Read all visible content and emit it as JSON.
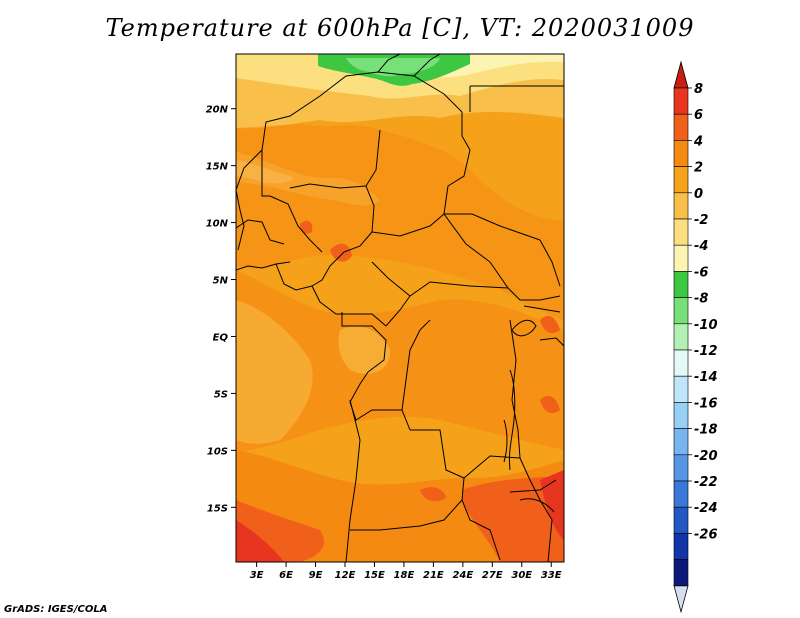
{
  "title": "Temperature at 600hPa [C], VT: 2020031009",
  "credit": "GrADS: IGES/COLA",
  "map": {
    "lon_ticks": [
      "3E",
      "6E",
      "9E",
      "12E",
      "15E",
      "18E",
      "21E",
      "24E",
      "27E",
      "30E",
      "33E"
    ],
    "lat_ticks": [
      "20N",
      "15N",
      "10N",
      "5N",
      "EQ",
      "5S",
      "10S",
      "15S"
    ]
  },
  "colorbar": {
    "labels": [
      "8",
      "6",
      "4",
      "2",
      "0",
      "-2",
      "-4",
      "-6",
      "-8",
      "-10",
      "-12",
      "-14",
      "-16",
      "-18",
      "-20",
      "-22",
      "-24",
      "-26"
    ],
    "colors": [
      "#e8351f",
      "#f0601a",
      "#f58a12",
      "#f5a21a",
      "#f8bf4a",
      "#fce080",
      "#fdf4b4",
      "#3ec743",
      "#78e078",
      "#b4f0b4",
      "#e4f8f4",
      "#bfe6f8",
      "#98cff5",
      "#78b4ee",
      "#5696e3",
      "#3a78d8",
      "#2258c3",
      "#1236a8",
      "#0b1a78"
    ],
    "top_cap_color": "#c81d12",
    "bottom_cap_color": "#d8dcf0"
  }
}
